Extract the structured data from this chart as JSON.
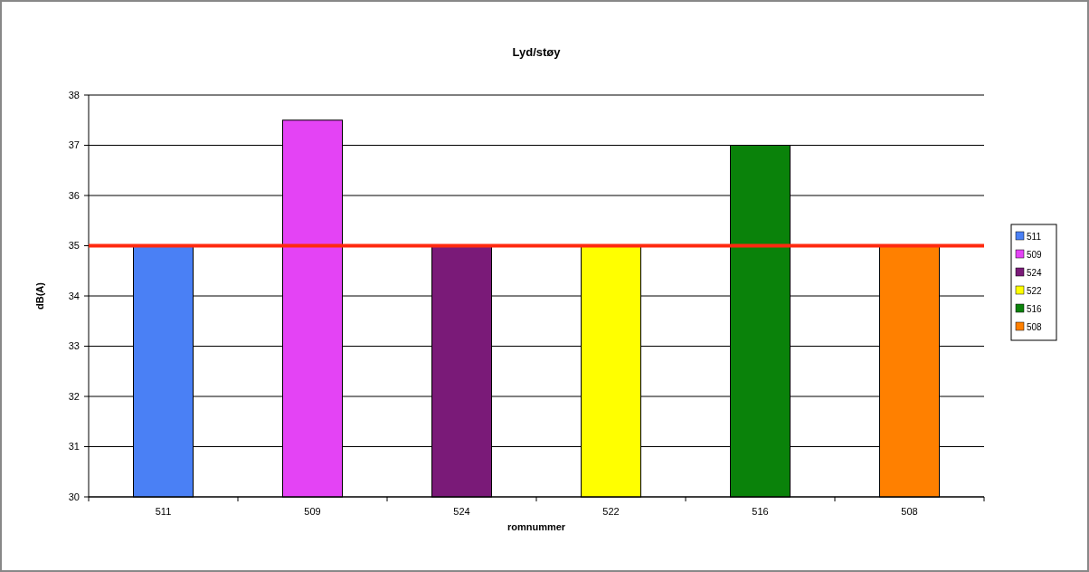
{
  "chart_data": {
    "type": "bar",
    "title": "Lyd/støy",
    "xlabel": "romnummer",
    "ylabel": "dB(A)",
    "categories": [
      "511",
      "509",
      "524",
      "522",
      "516",
      "508"
    ],
    "series": [
      {
        "name": "511",
        "color": "#4a80f5",
        "values": [
          35,
          null,
          null,
          null,
          null,
          null
        ]
      },
      {
        "name": "509",
        "color": "#e443f5",
        "values": [
          null,
          37.5,
          null,
          null,
          null,
          null
        ]
      },
      {
        "name": "524",
        "color": "#7a1a78",
        "values": [
          null,
          null,
          35,
          null,
          null,
          null
        ]
      },
      {
        "name": "522",
        "color": "#ffff00",
        "values": [
          null,
          null,
          null,
          35,
          null,
          null
        ]
      },
      {
        "name": "516",
        "color": "#0a820a",
        "values": [
          null,
          null,
          null,
          null,
          37,
          null
        ]
      },
      {
        "name": "508",
        "color": "#ff8000",
        "values": [
          null,
          null,
          null,
          null,
          null,
          35
        ]
      }
    ],
    "ylim": [
      30,
      38
    ],
    "yticks": [
      30,
      31,
      32,
      33,
      34,
      35,
      36,
      37,
      38
    ],
    "grid": "y",
    "legend": "right",
    "ref_lines": [
      {
        "axis": "y",
        "value": 35,
        "color": "#ff2a10"
      }
    ]
  }
}
